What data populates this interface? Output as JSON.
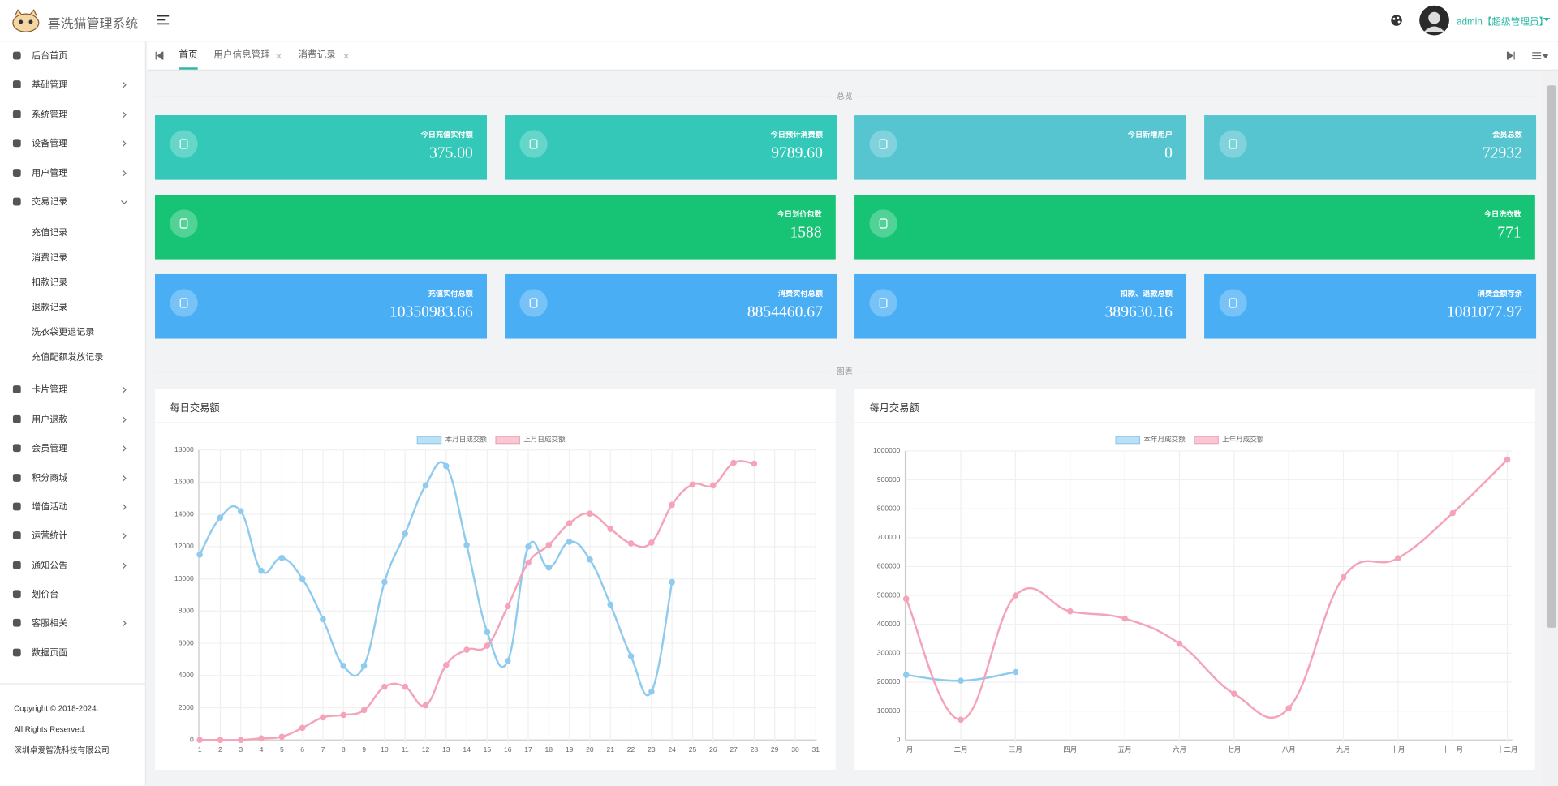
{
  "header": {
    "brand": "喜洗猫管理系统",
    "user": "admin【超级管理员】"
  },
  "sidebar": {
    "menu": [
      {
        "label": "后台首页"
      },
      {
        "label": "基础管理",
        "submenu": true
      },
      {
        "label": "系统管理",
        "submenu": true
      },
      {
        "label": "设备管理",
        "submenu": true
      },
      {
        "label": "用户管理",
        "submenu": true
      },
      {
        "label": "交易记录",
        "children": [
          "充值记录",
          "消费记录",
          "扣款记录",
          "退款记录",
          "洗衣袋更退记录",
          "充值配额发放记录"
        ]
      },
      {
        "label": "卡片管理",
        "submenu": true
      },
      {
        "label": "用户退款",
        "submenu": true
      },
      {
        "label": "会员管理",
        "submenu": true
      },
      {
        "label": "积分商城",
        "submenu": true
      },
      {
        "label": "增值活动",
        "submenu": true
      },
      {
        "label": "运营统计",
        "submenu": true
      },
      {
        "label": "通知公告",
        "submenu": true
      },
      {
        "label": "划价台"
      },
      {
        "label": "客服相关",
        "submenu": true
      },
      {
        "label": "数据页面"
      }
    ]
  },
  "footer": {
    "copyright": "Copyright © 2018-2024.",
    "rights": "All Rights Reserved.",
    "company": "深圳卓爱智洗科技有限公司"
  },
  "tabs": [
    "首页",
    "用户信息管理",
    "消费记录"
  ],
  "sections": {
    "overview": "总览",
    "charts": "图表"
  },
  "stats": [
    {
      "label": "今日充值实付额",
      "value": "375.00",
      "color": "#34c8b8"
    },
    {
      "label": "今日预计消费额",
      "value": "9789.60",
      "color": "#34c8b8"
    },
    {
      "label": "今日新增用户",
      "value": "0",
      "color": "#56c5d0"
    },
    {
      "label": "会员总数",
      "value": "72932",
      "color": "#56c5d0"
    },
    {
      "label": "今日划价包数",
      "value": "1588",
      "color": "#17c475"
    },
    {
      "label": "今日洗衣数",
      "value": "771",
      "color": "#17c475"
    },
    {
      "label": "充值实付总额",
      "value": "10350983.66",
      "color": "#4aaef5"
    },
    {
      "label": "消费实付总额",
      "value": "8854460.67",
      "color": "#4aaef5"
    },
    {
      "label": "扣款、退款总额",
      "value": "389630.16",
      "color": "#4aaef5"
    },
    {
      "label": "消费金额存余",
      "value": "1081077.97",
      "color": "#4aaef5"
    }
  ],
  "chart_data": [
    {
      "type": "line",
      "title": "每日交易额",
      "categories": [
        "1",
        "2",
        "3",
        "4",
        "5",
        "6",
        "7",
        "8",
        "9",
        "10",
        "11",
        "12",
        "13",
        "14",
        "15",
        "16",
        "17",
        "18",
        "19",
        "20",
        "21",
        "22",
        "23",
        "24",
        "25",
        "26",
        "27",
        "28",
        "29",
        "30",
        "31"
      ],
      "series": [
        {
          "name": "本月日成交额",
          "color": "#8fcbee",
          "values": [
            11500,
            13800,
            14200,
            10500,
            11300,
            10000,
            7500,
            4600,
            4600,
            9800,
            12800,
            15800,
            17000,
            12100,
            6700,
            4900,
            12000,
            10700,
            12300,
            11200,
            8400,
            5200,
            3000,
            9800,
            null,
            null,
            null,
            null,
            null,
            null,
            null
          ]
        },
        {
          "name": "上月日成交额",
          "color": "#f4a3b8",
          "values": [
            0,
            0,
            0,
            100,
            200,
            750,
            1400,
            1550,
            1850,
            3300,
            3300,
            2150,
            4650,
            5600,
            5850,
            8300,
            11000,
            12100,
            13450,
            14050,
            13100,
            12200,
            12250,
            14600,
            15850,
            15800,
            17200,
            17150,
            null,
            null,
            null
          ]
        }
      ],
      "ylim": [
        0,
        18000
      ],
      "yticks": [
        0,
        2000,
        4000,
        6000,
        8000,
        10000,
        12000,
        14000,
        16000,
        18000
      ],
      "grid": true,
      "legend": "top"
    },
    {
      "type": "line",
      "title": "每月交易额",
      "categories": [
        "一月",
        "二月",
        "三月",
        "四月",
        "五月",
        "六月",
        "七月",
        "八月",
        "九月",
        "十月",
        "十一月",
        "十二月"
      ],
      "series": [
        {
          "name": "本年月成交额",
          "color": "#8fcbee",
          "values": [
            225000,
            205000,
            235000,
            null,
            null,
            null,
            null,
            null,
            null,
            null,
            null,
            null
          ]
        },
        {
          "name": "上年月成交额",
          "color": "#f4a3b8",
          "values": [
            488000,
            70000,
            500000,
            445000,
            420000,
            333000,
            160000,
            110000,
            563000,
            629000,
            785000,
            970000
          ]
        }
      ],
      "ylim": [
        0,
        1000000
      ],
      "yticks": [
        0,
        100000,
        200000,
        300000,
        400000,
        500000,
        600000,
        700000,
        800000,
        900000,
        1000000
      ],
      "grid": true,
      "legend": "top"
    }
  ]
}
